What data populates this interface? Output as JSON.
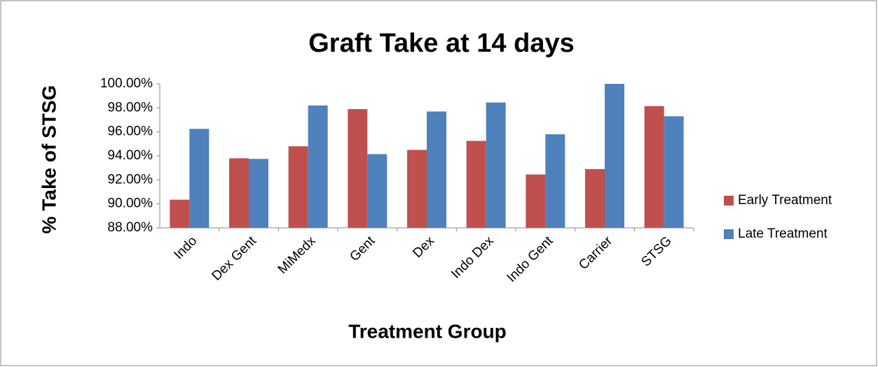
{
  "chart_data": {
    "type": "bar",
    "title": "Graft Take at 14 days",
    "x_label": "Treatment Group",
    "y_label": "% Take of STSG",
    "categories": [
      "Indo",
      "Dex Gent",
      "MiMedx",
      "Gent",
      "Dex",
      "Indo Dex",
      "Indo Gent",
      "Carrier",
      "STSG"
    ],
    "series": [
      {
        "name": "Early Treatment",
        "color": "#c0504d",
        "values": [
          90.35,
          93.8,
          94.8,
          97.9,
          94.5,
          95.25,
          92.45,
          92.9,
          98.15
        ]
      },
      {
        "name": "Late Treatment",
        "color": "#4f81bd",
        "values": [
          96.25,
          93.75,
          98.2,
          94.15,
          97.7,
          98.45,
          95.8,
          100,
          97.3
        ]
      }
    ],
    "ylim": [
      88,
      100
    ],
    "yticks": [
      {
        "value": 88,
        "label": "88.00%"
      },
      {
        "value": 90,
        "label": "90.00%"
      },
      {
        "value": 92,
        "label": "92.00%"
      },
      {
        "value": 94,
        "label": "94.00%"
      },
      {
        "value": 96,
        "label": "96.00%"
      },
      {
        "value": 98,
        "label": "98.00%"
      },
      {
        "value": 100,
        "label": "100.00%"
      }
    ],
    "grid": false,
    "legend": "right"
  }
}
